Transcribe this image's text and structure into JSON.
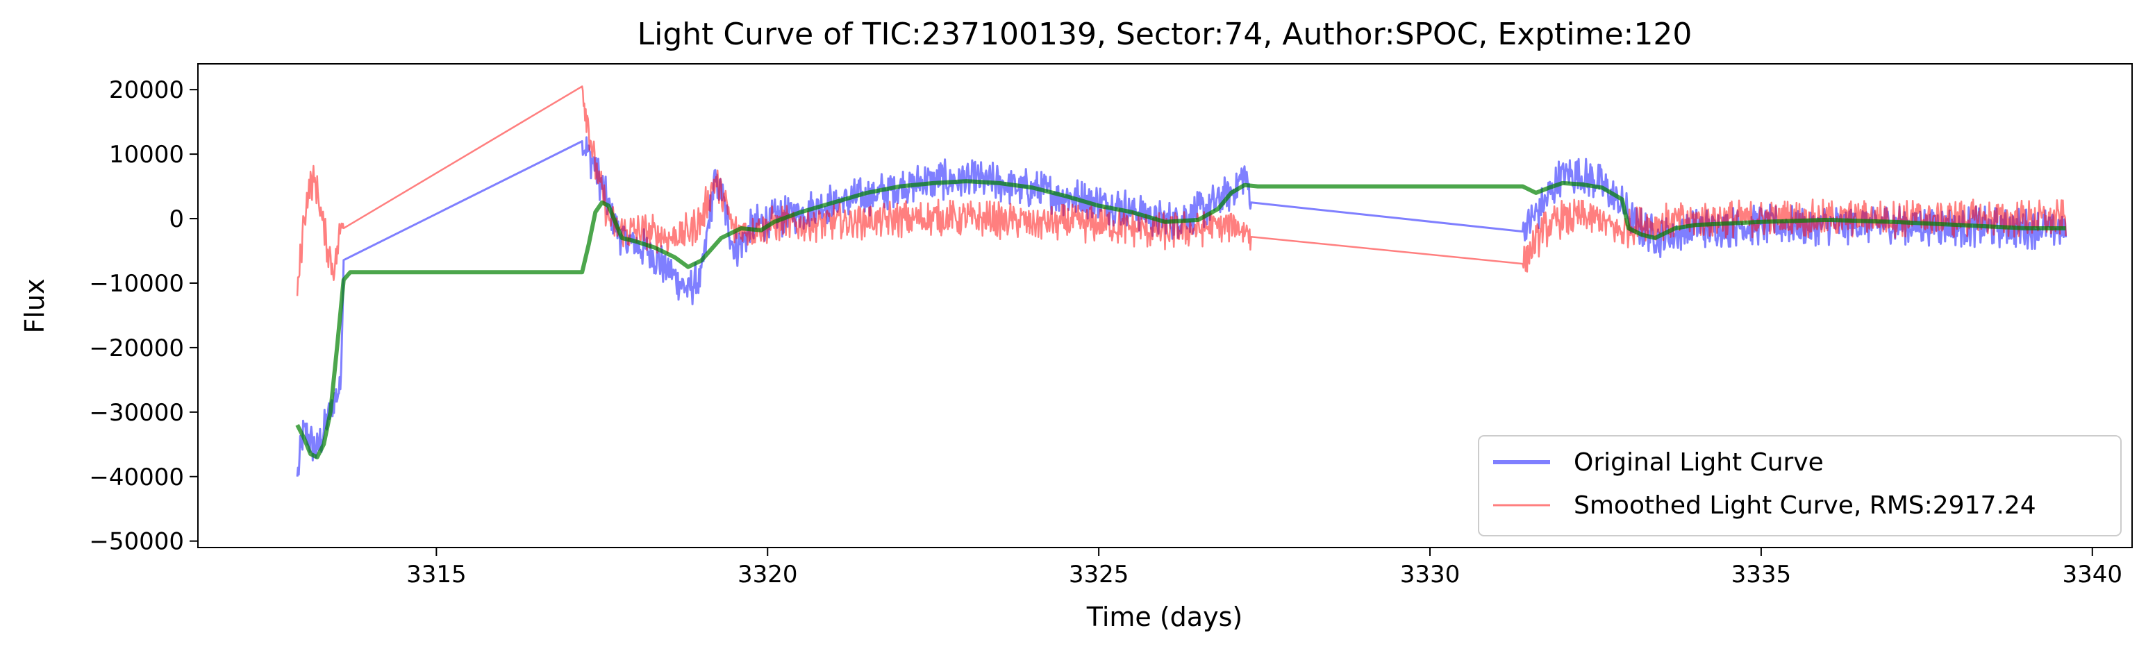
{
  "chart_data": {
    "type": "line",
    "title": "Light Curve of TIC:237100139, Sector:74, Author:SPOC, Exptime:120",
    "xlabel": "Time (days)",
    "ylabel": "Flux",
    "xlim": [
      3311.4,
      3340.6
    ],
    "ylim": [
      -51000,
      24000
    ],
    "xticks": [
      3315,
      3320,
      3325,
      3330,
      3335,
      3340
    ],
    "yticks": [
      -50000,
      -40000,
      -30000,
      -20000,
      -10000,
      0,
      10000,
      20000
    ],
    "grid": false,
    "legend_position": "bottom-right",
    "series": [
      {
        "name": "Original Light Curve",
        "color": "#0000ff",
        "opacity": 0.5,
        "style": "noisy",
        "points": [
          [
            3312.9,
            -40000
          ],
          [
            3313.0,
            -33000
          ],
          [
            3313.2,
            -36000
          ],
          [
            3313.4,
            -30000
          ],
          [
            3313.55,
            -26000
          ],
          [
            3313.6,
            -7500
          ],
          [
            3317.2,
            12000
          ],
          [
            3317.4,
            8000
          ],
          [
            3317.6,
            2000
          ],
          [
            3317.8,
            -3000
          ],
          [
            3318.2,
            -5000
          ],
          [
            3318.5,
            -8000
          ],
          [
            3318.8,
            -11000
          ],
          [
            3319.0,
            -9000
          ],
          [
            3319.2,
            6000
          ],
          [
            3319.3,
            4000
          ],
          [
            3319.5,
            -5000
          ],
          [
            3319.8,
            -1000
          ],
          [
            3320.5,
            1000
          ],
          [
            3321.0,
            2500
          ],
          [
            3321.5,
            3500
          ],
          [
            3322.0,
            5000
          ],
          [
            3322.5,
            6000
          ],
          [
            3323.0,
            6000
          ],
          [
            3323.5,
            5500
          ],
          [
            3324.0,
            4500
          ],
          [
            3324.5,
            3500
          ],
          [
            3325.0,
            2500
          ],
          [
            3325.5,
            1500
          ],
          [
            3326.0,
            -500
          ],
          [
            3326.5,
            1000
          ],
          [
            3327.0,
            4000
          ],
          [
            3327.2,
            7000
          ],
          [
            3327.3,
            3000
          ],
          [
            3331.4,
            -2000
          ],
          [
            3331.7,
            2000
          ],
          [
            3332.0,
            7000
          ],
          [
            3332.5,
            6000
          ],
          [
            3332.9,
            2000
          ],
          [
            3333.1,
            -1000
          ],
          [
            3333.5,
            -3000
          ],
          [
            3334.0,
            -1500
          ],
          [
            3335.0,
            -1000
          ],
          [
            3336.0,
            -1000
          ],
          [
            3337.0,
            -800
          ],
          [
            3338.0,
            -1200
          ],
          [
            3339.0,
            -1500
          ],
          [
            3339.6,
            -1500
          ]
        ]
      },
      {
        "name": "Smoothed Light Curve, RMS:2917.24",
        "color": "#ff0000",
        "opacity": 0.5,
        "style": "noisy",
        "points": [
          [
            3312.9,
            -12000
          ],
          [
            3313.0,
            0
          ],
          [
            3313.1,
            6000
          ],
          [
            3313.2,
            5000
          ],
          [
            3313.3,
            -2000
          ],
          [
            3313.45,
            -8000
          ],
          [
            3313.6,
            1000
          ],
          [
            3317.2,
            20500
          ],
          [
            3317.4,
            8000
          ],
          [
            3317.6,
            0
          ],
          [
            3317.8,
            -2000
          ],
          [
            3318.2,
            -2000
          ],
          [
            3318.5,
            -3000
          ],
          [
            3318.8,
            -2000
          ],
          [
            3319.0,
            0
          ],
          [
            3319.2,
            6000
          ],
          [
            3319.3,
            4000
          ],
          [
            3319.5,
            -2000
          ],
          [
            3320.0,
            -1000
          ],
          [
            3321.0,
            -500
          ],
          [
            3322.0,
            0
          ],
          [
            3323.0,
            0
          ],
          [
            3324.0,
            -500
          ],
          [
            3325.0,
            -1000
          ],
          [
            3326.0,
            -2000
          ],
          [
            3326.5,
            -1500
          ],
          [
            3327.0,
            -1000
          ],
          [
            3327.3,
            -2000
          ],
          [
            3331.4,
            -7000
          ],
          [
            3331.7,
            -2000
          ],
          [
            3332.0,
            0
          ],
          [
            3332.5,
            0
          ],
          [
            3332.9,
            -2000
          ],
          [
            3333.1,
            -1000
          ],
          [
            3334.0,
            0
          ],
          [
            3335.0,
            0
          ],
          [
            3336.0,
            0
          ],
          [
            3337.0,
            0
          ],
          [
            3338.0,
            0
          ],
          [
            3339.0,
            0
          ],
          [
            3339.6,
            0
          ]
        ]
      },
      {
        "name": "",
        "color": "#008000",
        "opacity": 0.7,
        "style": "smooth",
        "points": [
          [
            3312.9,
            -32000
          ],
          [
            3313.0,
            -34000
          ],
          [
            3313.1,
            -36500
          ],
          [
            3313.2,
            -37000
          ],
          [
            3313.3,
            -35000
          ],
          [
            3313.4,
            -30000
          ],
          [
            3313.5,
            -20000
          ],
          [
            3313.6,
            -9500
          ],
          [
            3313.7,
            -8300
          ],
          [
            3317.2,
            -8300
          ],
          [
            3317.3,
            -4000
          ],
          [
            3317.4,
            1000
          ],
          [
            3317.5,
            2500
          ],
          [
            3317.6,
            2000
          ],
          [
            3317.8,
            -3000
          ],
          [
            3318.0,
            -3500
          ],
          [
            3318.3,
            -4500
          ],
          [
            3318.6,
            -6000
          ],
          [
            3318.8,
            -7500
          ],
          [
            3319.0,
            -6500
          ],
          [
            3319.3,
            -3000
          ],
          [
            3319.6,
            -1500
          ],
          [
            3319.9,
            -1800
          ],
          [
            3320.1,
            -500
          ],
          [
            3320.5,
            1000
          ],
          [
            3321.0,
            2500
          ],
          [
            3321.5,
            4000
          ],
          [
            3322.0,
            5000
          ],
          [
            3322.5,
            5500
          ],
          [
            3323.0,
            5800
          ],
          [
            3323.5,
            5500
          ],
          [
            3324.0,
            4800
          ],
          [
            3324.5,
            3500
          ],
          [
            3325.0,
            2000
          ],
          [
            3325.5,
            1000
          ],
          [
            3326.0,
            -500
          ],
          [
            3326.5,
            -200
          ],
          [
            3326.8,
            1500
          ],
          [
            3327.0,
            4000
          ],
          [
            3327.2,
            5200
          ],
          [
            3327.4,
            5000
          ],
          [
            3331.4,
            5000
          ],
          [
            3331.6,
            4000
          ],
          [
            3331.8,
            4800
          ],
          [
            3332.0,
            5500
          ],
          [
            3332.3,
            5300
          ],
          [
            3332.6,
            4800
          ],
          [
            3332.9,
            3000
          ],
          [
            3333.0,
            -1500
          ],
          [
            3333.2,
            -2500
          ],
          [
            3333.4,
            -3000
          ],
          [
            3333.7,
            -1500
          ],
          [
            3334.0,
            -1000
          ],
          [
            3335.0,
            -500
          ],
          [
            3336.0,
            -200
          ],
          [
            3337.0,
            -500
          ],
          [
            3338.0,
            -1000
          ],
          [
            3339.0,
            -1500
          ],
          [
            3339.6,
            -1500
          ]
        ]
      }
    ]
  }
}
